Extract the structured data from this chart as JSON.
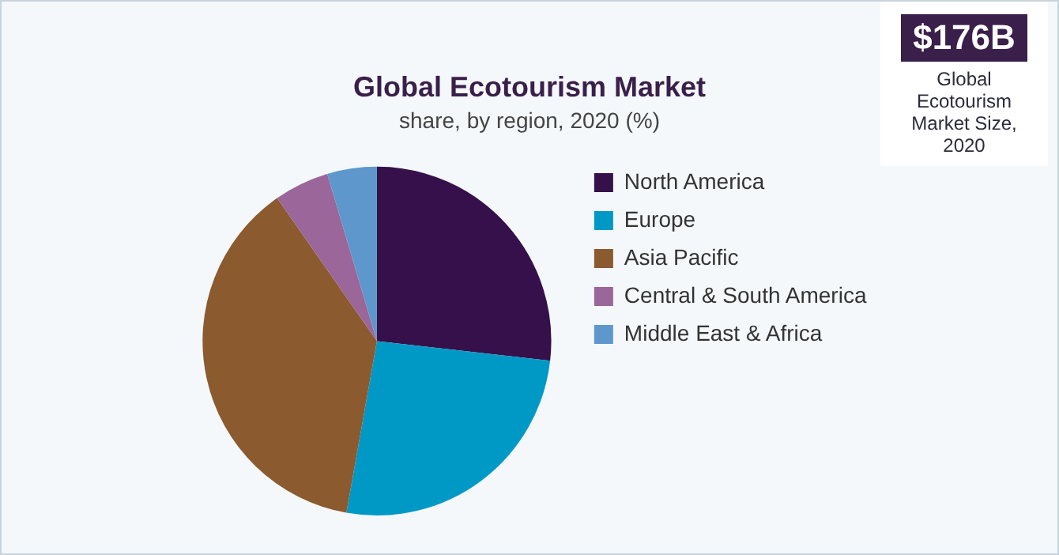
{
  "chart_data": {
    "type": "pie",
    "title": "Global Ecotourism Market",
    "subtitle": "share, by region, 2020 (%)",
    "categories": [
      "North America",
      "Europe",
      "Asia Pacific",
      "Central & South America",
      "Middle East & Africa"
    ],
    "values": [
      26.8,
      26.0,
      37.5,
      5.1,
      4.6
    ],
    "colors": [
      "#35104a",
      "#0099c6",
      "#8b5a2e",
      "#9b6699",
      "#5e97cc"
    ],
    "legend": "right",
    "annotations": [
      "$176B",
      "Global Ecotourism Market Size, 2020"
    ]
  }
}
